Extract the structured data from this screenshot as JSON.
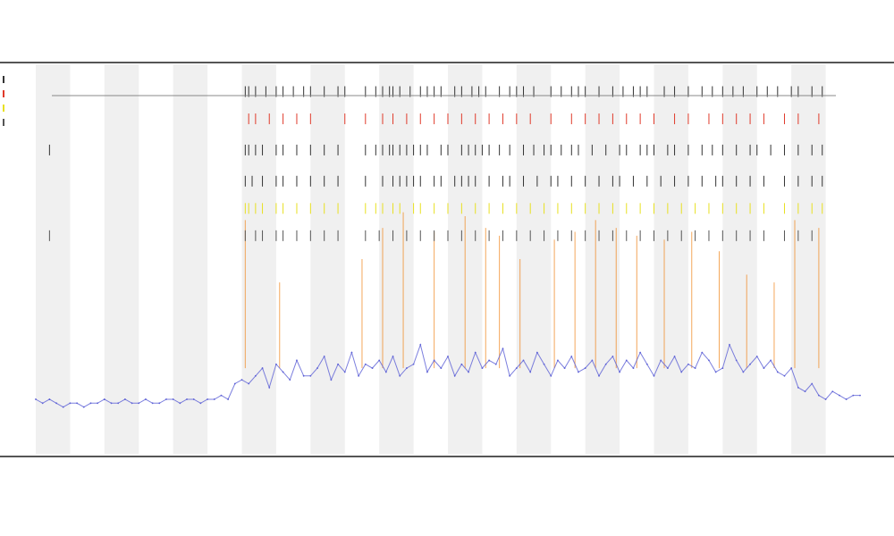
{
  "chart_data": {
    "type": "line",
    "title": "",
    "subtitle": [
      "",
      ""
    ],
    "xlabel": "",
    "ylabel": "",
    "legend_position": "top-left",
    "grid": false,
    "shaded_bands": true,
    "ylim": [
      0,
      100
    ],
    "xlim": [
      0,
      240
    ],
    "colors": {
      "series": "#5b5fd6",
      "band": "#f0f0f0",
      "axis": "#555555",
      "marker_dark": "#333333",
      "marker_red": "#e03a2a",
      "marker_orange": "#f08a24",
      "marker_yellow": "#e8e020"
    },
    "band_ranges": [
      [
        0,
        10
      ],
      [
        20,
        30
      ],
      [
        40,
        50
      ],
      [
        60,
        70
      ],
      [
        80,
        90
      ],
      [
        100,
        110
      ],
      [
        120,
        130
      ],
      [
        140,
        150
      ],
      [
        160,
        170
      ],
      [
        180,
        190
      ],
      [
        200,
        210
      ],
      [
        220,
        230
      ]
    ],
    "series": [
      {
        "name": "",
        "x": [
          0,
          2,
          4,
          6,
          8,
          10,
          12,
          14,
          16,
          18,
          20,
          22,
          24,
          26,
          28,
          30,
          32,
          34,
          36,
          38,
          40,
          42,
          44,
          46,
          48,
          50,
          52,
          54,
          56,
          58,
          60,
          62,
          64,
          66,
          68,
          70,
          72,
          74,
          76,
          78,
          80,
          82,
          84,
          86,
          88,
          90,
          92,
          94,
          96,
          98,
          100,
          102,
          104,
          106,
          108,
          110,
          112,
          114,
          116,
          118,
          120,
          122,
          124,
          126,
          128,
          130,
          132,
          134,
          136,
          138,
          140,
          142,
          144,
          146,
          148,
          150,
          152,
          154,
          156,
          158,
          160,
          162,
          164,
          166,
          168,
          170,
          172,
          174,
          176,
          178,
          180,
          182,
          184,
          186,
          188,
          190,
          192,
          194,
          196,
          198,
          200,
          202,
          204,
          206,
          208,
          210,
          212,
          214,
          216,
          218,
          220,
          222,
          224,
          226,
          228,
          230,
          232,
          234,
          236,
          238,
          240
        ],
        "values": [
          14,
          13,
          14,
          13,
          12,
          13,
          13,
          12,
          13,
          13,
          14,
          13,
          13,
          14,
          13,
          13,
          14,
          13,
          13,
          14,
          14,
          13,
          14,
          14,
          13,
          14,
          14,
          15,
          14,
          18,
          19,
          18,
          20,
          22,
          17,
          23,
          21,
          19,
          24,
          20,
          20,
          22,
          25,
          19,
          23,
          21,
          26,
          20,
          23,
          22,
          24,
          21,
          25,
          20,
          22,
          23,
          28,
          21,
          24,
          22,
          25,
          20,
          23,
          21,
          26,
          22,
          24,
          23,
          27,
          20,
          22,
          24,
          21,
          26,
          23,
          20,
          24,
          22,
          25,
          21,
          22,
          24,
          20,
          23,
          25,
          21,
          24,
          22,
          26,
          23,
          20,
          24,
          22,
          25,
          21,
          23,
          22,
          26,
          24,
          21,
          22,
          28,
          24,
          21,
          23,
          25,
          22,
          24,
          21,
          20,
          22,
          17,
          16,
          18,
          15,
          14,
          16,
          15,
          14,
          15,
          15
        ]
      }
    ],
    "marker_rows": [
      {
        "name": "",
        "color": "#333333",
        "level": 93,
        "x": [
          61,
          62,
          64,
          67,
          70,
          72,
          75,
          78,
          80,
          84,
          88,
          90,
          96,
          99,
          101,
          103,
          104,
          106,
          109,
          112,
          114,
          116,
          118,
          122,
          124,
          127,
          129,
          131,
          135,
          138,
          140,
          142,
          145,
          150,
          153,
          156,
          158,
          160,
          164,
          168,
          171,
          174,
          176,
          178,
          183,
          186,
          190,
          194,
          197,
          200,
          203,
          206,
          210,
          213,
          216,
          220,
          222,
          226,
          229
        ]
      },
      {
        "name": "",
        "color": "#e03a2a",
        "level": 86,
        "x": [
          62,
          64,
          68,
          72,
          76,
          80,
          90,
          96,
          101,
          104,
          108,
          112,
          116,
          120,
          124,
          128,
          132,
          136,
          140,
          144,
          150,
          156,
          160,
          164,
          168,
          172,
          176,
          180,
          186,
          190,
          196,
          200,
          204,
          208,
          212,
          218,
          222,
          228
        ]
      },
      {
        "name": "",
        "color": "#333333",
        "level": 78,
        "x": [
          4,
          61,
          62,
          64,
          66,
          70,
          72,
          76,
          80,
          84,
          88,
          96,
          99,
          101,
          103,
          104,
          106,
          108,
          110,
          112,
          114,
          118,
          120,
          124,
          126,
          128,
          130,
          132,
          135,
          138,
          142,
          145,
          148,
          150,
          153,
          156,
          158,
          162,
          166,
          170,
          172,
          176,
          178,
          180,
          184,
          186,
          190,
          194,
          197,
          200,
          204,
          208,
          210,
          214,
          218,
          222,
          226,
          229
        ]
      },
      {
        "name": "",
        "color": "#333333",
        "level": 70,
        "x": [
          61,
          63,
          66,
          70,
          72,
          76,
          80,
          84,
          88,
          96,
          101,
          104,
          106,
          108,
          110,
          112,
          116,
          118,
          122,
          124,
          126,
          128,
          132,
          136,
          138,
          142,
          146,
          150,
          152,
          156,
          160,
          164,
          168,
          170,
          174,
          178,
          182,
          186,
          190,
          194,
          198,
          200,
          204,
          208,
          212,
          218,
          222,
          226,
          229
        ]
      },
      {
        "name": "",
        "color": "#e8e020",
        "level": 63,
        "x": [
          61,
          62,
          64,
          66,
          70,
          72,
          76,
          80,
          84,
          88,
          96,
          99,
          101,
          104,
          106,
          110,
          112,
          116,
          120,
          124,
          128,
          132,
          136,
          140,
          144,
          148,
          152,
          156,
          160,
          164,
          168,
          172,
          176,
          180,
          184,
          188,
          192,
          196,
          200,
          204,
          208,
          212,
          218,
          222,
          226,
          229
        ]
      },
      {
        "name": "",
        "color": "#555555",
        "level": 56,
        "x": [
          4,
          61,
          64,
          66,
          70,
          72,
          76,
          80,
          84,
          88,
          96,
          100,
          104,
          108,
          112,
          116,
          120,
          124,
          128,
          132,
          136,
          140,
          144,
          148,
          152,
          156,
          160,
          164,
          168,
          172,
          176,
          180,
          184,
          188,
          192,
          196,
          200,
          204,
          208,
          212,
          218,
          222,
          226
        ]
      }
    ],
    "spikes": [
      {
        "x": 61,
        "top": 60,
        "color": "#f08a24"
      },
      {
        "x": 71,
        "top": 44,
        "color": "#f08a24"
      },
      {
        "x": 95,
        "top": 50,
        "color": "#f08a24"
      },
      {
        "x": 101,
        "top": 58,
        "color": "#f08a24"
      },
      {
        "x": 107,
        "top": 62,
        "color": "#f08a24"
      },
      {
        "x": 116,
        "top": 57,
        "color": "#f08a24"
      },
      {
        "x": 125,
        "top": 61,
        "color": "#f08a24"
      },
      {
        "x": 131,
        "top": 58,
        "color": "#f08a24"
      },
      {
        "x": 135,
        "top": 56,
        "color": "#f08a24"
      },
      {
        "x": 141,
        "top": 50,
        "color": "#f08a24"
      },
      {
        "x": 151,
        "top": 55,
        "color": "#f08a24"
      },
      {
        "x": 157,
        "top": 57,
        "color": "#f08a24"
      },
      {
        "x": 163,
        "top": 60,
        "color": "#f08a24"
      },
      {
        "x": 169,
        "top": 58,
        "color": "#f08a24"
      },
      {
        "x": 175,
        "top": 56,
        "color": "#f08a24"
      },
      {
        "x": 183,
        "top": 55,
        "color": "#f08a24"
      },
      {
        "x": 191,
        "top": 57,
        "color": "#f08a24"
      },
      {
        "x": 199,
        "top": 52,
        "color": "#f08a24"
      },
      {
        "x": 207,
        "top": 46,
        "color": "#f08a24"
      },
      {
        "x": 215,
        "top": 44,
        "color": "#f08a24"
      },
      {
        "x": 221,
        "top": 60,
        "color": "#f08a24"
      },
      {
        "x": 228,
        "top": 58,
        "color": "#f08a24"
      }
    ],
    "legend": [
      {
        "label": "",
        "color": "#333333"
      },
      {
        "label": "",
        "color": "#e03a2a"
      },
      {
        "label": "",
        "color": "#e8e020"
      },
      {
        "label": "",
        "color": "#555555"
      }
    ],
    "row_labels": [
      "",
      ""
    ],
    "x_tick_labels": [],
    "y_tick_labels": []
  }
}
